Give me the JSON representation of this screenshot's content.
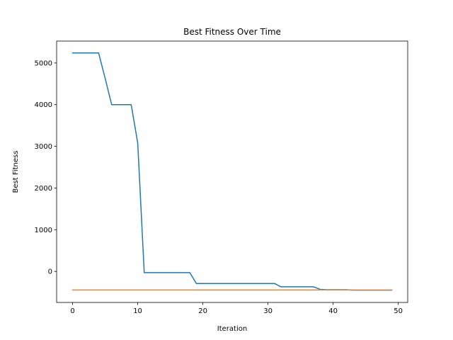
{
  "chart_data": {
    "type": "line",
    "title": "Best Fitness Over Time",
    "xlabel": "Iteration",
    "ylabel": "Best Fitness",
    "xlim": [
      -2.45,
      51.45
    ],
    "ylim": [
      -745,
      5525
    ],
    "xticks": [
      0,
      10,
      20,
      30,
      40,
      50
    ],
    "yticks": [
      0,
      1000,
      2000,
      3000,
      4000,
      5000
    ],
    "grid": false,
    "legend": "none",
    "x": [
      0,
      1,
      2,
      3,
      4,
      5,
      6,
      7,
      8,
      9,
      10,
      11,
      12,
      13,
      14,
      15,
      16,
      17,
      18,
      19,
      20,
      21,
      22,
      23,
      24,
      25,
      26,
      27,
      28,
      29,
      30,
      31,
      32,
      33,
      34,
      35,
      36,
      37,
      38,
      39,
      40,
      41,
      42,
      43,
      44,
      45,
      46,
      47,
      48,
      49
    ],
    "series": [
      {
        "color": "#1f77b4",
        "values": [
          5240,
          5240,
          5240,
          5240,
          5240,
          4630,
          4000,
          4000,
          4000,
          4000,
          3080,
          -30,
          -30,
          -30,
          -30,
          -30,
          -30,
          -30,
          -30,
          -290,
          -290,
          -290,
          -290,
          -290,
          -290,
          -290,
          -290,
          -290,
          -290,
          -290,
          -290,
          -290,
          -370,
          -370,
          -370,
          -370,
          -370,
          -370,
          -430,
          -440,
          -440,
          -440,
          -440,
          -450,
          -450,
          -450,
          -450,
          -450,
          -450,
          -450
        ]
      },
      {
        "color": "#ff7f0e",
        "values": [
          -445,
          -445,
          -445,
          -445,
          -445,
          -445,
          -445,
          -445,
          -445,
          -445,
          -445,
          -445,
          -445,
          -445,
          -445,
          -445,
          -445,
          -445,
          -445,
          -445,
          -445,
          -445,
          -445,
          -445,
          -445,
          -445,
          -445,
          -445,
          -445,
          -445,
          -445,
          -445,
          -445,
          -445,
          -445,
          -445,
          -445,
          -445,
          -445,
          -445,
          -445,
          -445,
          -445,
          -445,
          -445,
          -445,
          -445,
          -445,
          -445,
          -445
        ]
      }
    ]
  }
}
